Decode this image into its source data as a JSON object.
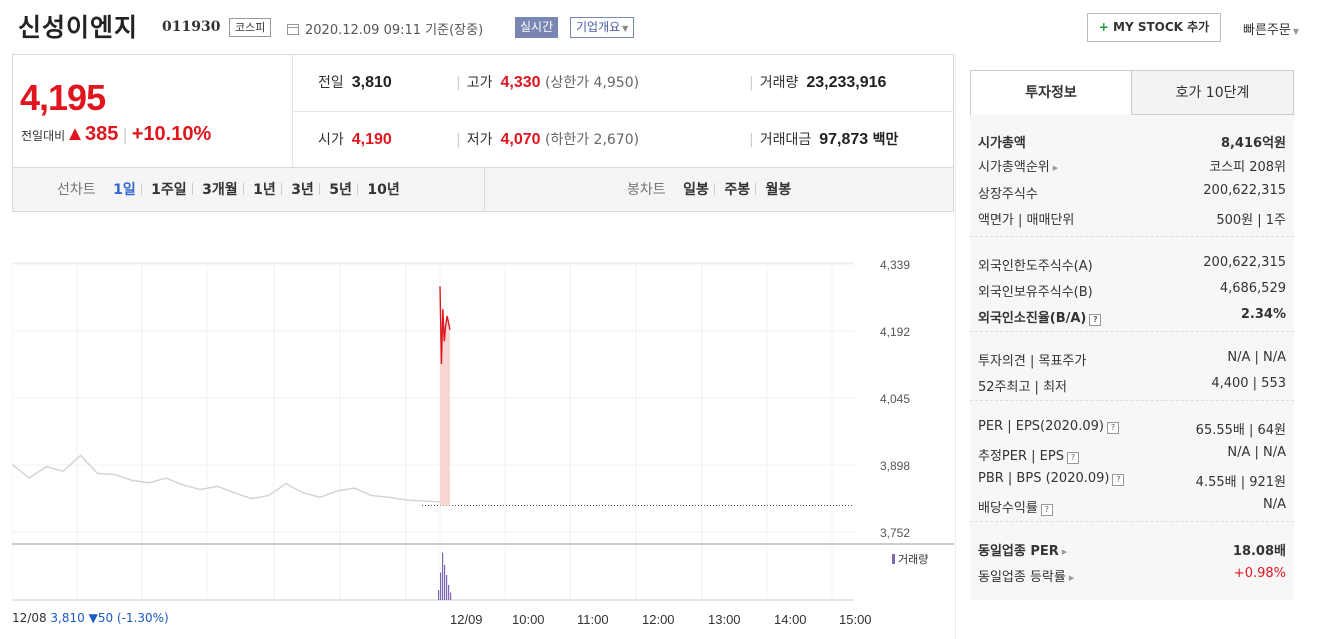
{
  "header": {
    "stock_name": "신성이엔지",
    "stock_code": "011930",
    "market": "코스피",
    "datetime": "2020.12.09 09:11",
    "basis": "기준(장중)",
    "realtime_label": "실시간",
    "company_info_label": "기업개요",
    "mystock_label": "MY STOCK 추가",
    "quick_order_label": "빠른주문"
  },
  "price": {
    "current": "4,195",
    "change_label": "전일대비",
    "change_arrow": "▲",
    "change_value": "385",
    "change_rate": "+10.10%"
  },
  "summary": {
    "prev_close_label": "전일",
    "prev_close": "3,810",
    "high_label": "고가",
    "high": "4,330",
    "upper_limit": "(상한가 4,950)",
    "volume_label": "거래량",
    "volume": "23,233,916",
    "open_label": "시가",
    "open": "4,190",
    "low_label": "저가",
    "low": "4,070",
    "lower_limit": "(하한가 2,670)",
    "amount_label": "거래대금",
    "amount": "97,873",
    "amount_unit": "백만"
  },
  "chart_tabs": {
    "line_title": "선차트",
    "line_tabs": [
      "1일",
      "1주일",
      "3개월",
      "1년",
      "3년",
      "5년",
      "10년"
    ],
    "active": "1일",
    "candle_title": "봉차트",
    "candle_tabs": [
      "일봉",
      "주봉",
      "월봉"
    ]
  },
  "chart_data": {
    "type": "line",
    "y_ticks": [
      "4,339",
      "4,192",
      "4,045",
      "3,898",
      "3,752"
    ],
    "ylim": [
      3752,
      4339
    ],
    "x_ticks": [
      "12/08",
      "12/09",
      "10:00",
      "11:00",
      "12:00",
      "13:00",
      "14:00",
      "15:00"
    ],
    "prev_day_label": "12/08",
    "prev_close_text": "3,810",
    "prev_change_text": "▼50 (-1.30%)",
    "volume_legend": "거래량",
    "series": [
      {
        "name": "12/08",
        "x": [
          0,
          2,
          4,
          6,
          8,
          10,
          12,
          14,
          16,
          18,
          20,
          22,
          24,
          26,
          28,
          30,
          32,
          34,
          36,
          38,
          40,
          42,
          44,
          46,
          48,
          50
        ],
        "values": [
          3900,
          3870,
          3895,
          3885,
          3920,
          3880,
          3878,
          3865,
          3860,
          3870,
          3855,
          3845,
          3852,
          3838,
          3825,
          3832,
          3858,
          3838,
          3828,
          3842,
          3848,
          3832,
          3828,
          3822,
          3820,
          3818
        ]
      },
      {
        "name": "12/09",
        "x": [
          0,
          0.1,
          0.2,
          0.3,
          0.4,
          0.5,
          0.6,
          0.7
        ],
        "values": [
          4290,
          4120,
          4240,
          4170,
          4205,
          4225,
          4210,
          4195
        ]
      }
    ],
    "prev_close_line": 3810,
    "volume": [
      0.2,
      0.55,
      0.95,
      0.7,
      0.5,
      0.3,
      0.15
    ]
  },
  "invest_info": {
    "tab_active": "투자정보",
    "tab_other": "호가 10단계",
    "sections": [
      [
        {
          "k": "시가총액",
          "v": "8,416억원",
          "bold": true
        },
        {
          "k": "시가총액순위",
          "v": "코스피 208위",
          "tri": true
        },
        {
          "k": "상장주식수",
          "v": "200,622,315"
        },
        {
          "k": "액면가 | 매매단위",
          "v": "500원 | 1주"
        }
      ],
      [
        {
          "k": "외국인한도주식수(A)",
          "v": "200,622,315"
        },
        {
          "k": "외국인보유주식수(B)",
          "v": "4,686,529"
        },
        {
          "k": "외국인소진율(B/A)",
          "v": "2.34%",
          "bold": true,
          "q": true
        }
      ],
      [
        {
          "k": "투자의견 | 목표주가",
          "v": "N/A | N/A"
        },
        {
          "k": "52주최고 | 최저",
          "v": "4,400 | 553"
        }
      ],
      [
        {
          "k": "PER | EPS(2020.09)",
          "v": "65.55배 | 64원",
          "q": true
        },
        {
          "k": "추정PER | EPS",
          "v": "N/A | N/A",
          "q": true
        },
        {
          "k": "PBR | BPS (2020.09)",
          "v": "4.55배 | 921원",
          "q": true
        },
        {
          "k": "배당수익률",
          "v": "N/A",
          "q": true
        }
      ],
      [
        {
          "k": "동일업종 PER",
          "v": "18.08배",
          "bold": true,
          "tri": true
        },
        {
          "k": "동일업종 등락률",
          "v": "+0.98%",
          "red": true,
          "tri": true
        }
      ]
    ]
  }
}
